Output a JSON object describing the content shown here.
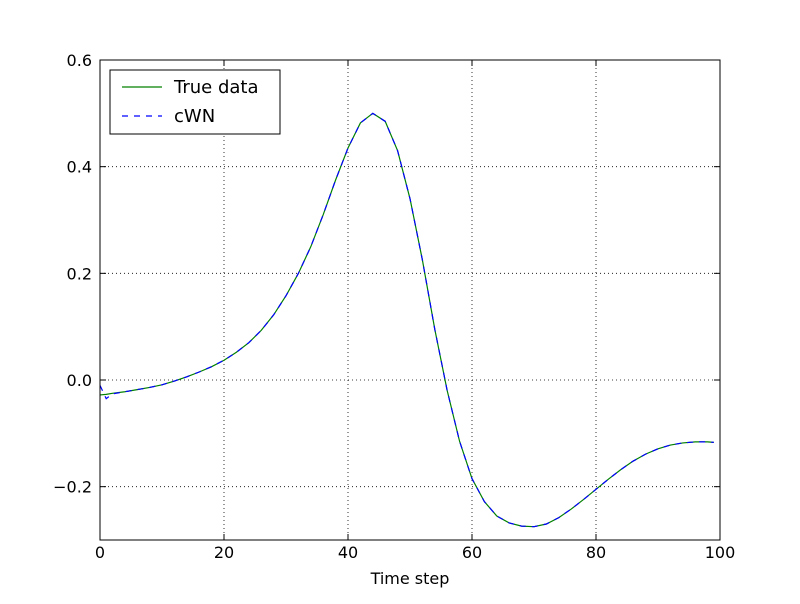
{
  "chart_data": {
    "type": "line",
    "x_label": "Time step",
    "x": [
      0,
      1,
      2,
      4,
      6,
      8,
      10,
      12,
      14,
      16,
      18,
      20,
      22,
      24,
      26,
      28,
      30,
      32,
      34,
      36,
      38,
      40,
      42,
      44,
      46,
      48,
      50,
      52,
      54,
      56,
      58,
      60,
      62,
      64,
      66,
      68,
      70,
      72,
      74,
      76,
      78,
      80,
      82,
      84,
      86,
      88,
      90,
      92,
      94,
      96,
      98,
      99
    ],
    "series": [
      {
        "name": "True data",
        "color": "#008000",
        "dash": false,
        "values": [
          -0.028,
          -0.027,
          -0.025,
          -0.022,
          -0.018,
          -0.014,
          -0.009,
          -0.002,
          0.006,
          0.015,
          0.025,
          0.037,
          0.052,
          0.07,
          0.093,
          0.122,
          0.158,
          0.2,
          0.25,
          0.31,
          0.375,
          0.435,
          0.482,
          0.5,
          0.485,
          0.43,
          0.34,
          0.225,
          0.095,
          -0.02,
          -0.115,
          -0.185,
          -0.228,
          -0.255,
          -0.268,
          -0.274,
          -0.275,
          -0.27,
          -0.258,
          -0.242,
          -0.224,
          -0.205,
          -0.186,
          -0.168,
          -0.152,
          -0.139,
          -0.129,
          -0.122,
          -0.118,
          -0.116,
          -0.116,
          -0.117
        ]
      },
      {
        "name": "cWN",
        "color": "#0000ff",
        "dash": true,
        "values": [
          -0.01,
          -0.035,
          -0.026,
          -0.022,
          -0.018,
          -0.014,
          -0.009,
          -0.002,
          0.006,
          0.015,
          0.025,
          0.037,
          0.052,
          0.07,
          0.093,
          0.122,
          0.158,
          0.2,
          0.25,
          0.31,
          0.375,
          0.435,
          0.482,
          0.5,
          0.485,
          0.43,
          0.34,
          0.225,
          0.095,
          -0.02,
          -0.115,
          -0.185,
          -0.228,
          -0.255,
          -0.268,
          -0.274,
          -0.275,
          -0.27,
          -0.258,
          -0.242,
          -0.224,
          -0.205,
          -0.186,
          -0.168,
          -0.152,
          -0.139,
          -0.129,
          -0.122,
          -0.118,
          -0.116,
          -0.116,
          -0.117
        ]
      }
    ],
    "xlim": [
      0,
      100
    ],
    "xticks": [
      0,
      20,
      40,
      60,
      80,
      100
    ],
    "ylim": [
      -0.3,
      0.6
    ],
    "yticks": [
      {
        "value": -0.2,
        "label": "−0.2"
      },
      {
        "value": 0,
        "label": "0.0"
      },
      0.2,
      0.4,
      0.6
    ],
    "grid": true,
    "legend": "upper left"
  }
}
